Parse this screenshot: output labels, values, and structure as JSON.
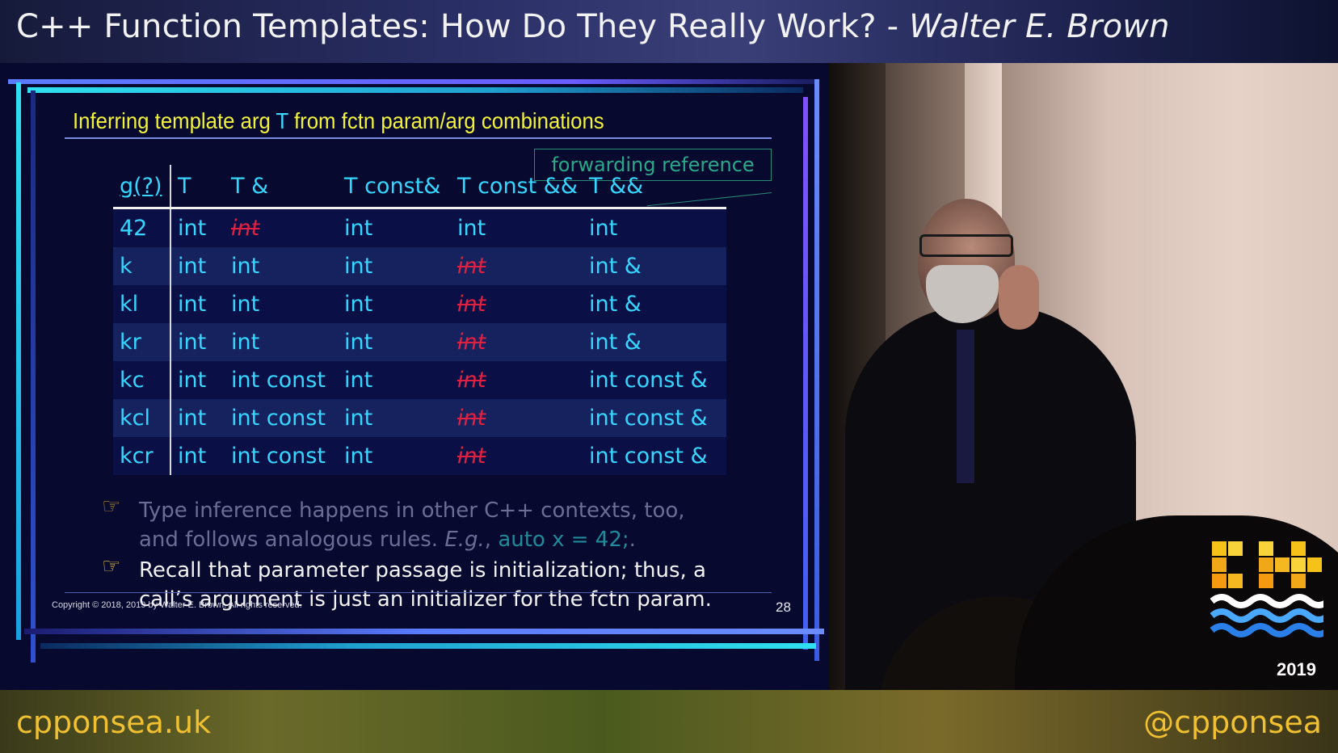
{
  "header": {
    "title": "C++ Function Templates: How Do They Really Work? -",
    "speaker": "Walter E. Brown"
  },
  "slide": {
    "heading_prefix": "Inferring template arg",
    "heading_tvar": "T",
    "heading_suffix": "from fctn param/arg combinations",
    "forwarding_box": "forwarding reference",
    "table": {
      "headers": [
        "g(?)",
        "T",
        "T &",
        "T const&",
        "T const &&",
        "T &&"
      ],
      "rows": [
        {
          "arg": "42",
          "cells": [
            "int",
            "int",
            "int",
            "int",
            "int"
          ],
          "struck": [
            false,
            true,
            false,
            false,
            false
          ]
        },
        {
          "arg": "k",
          "cells": [
            "int",
            "int",
            "int",
            "int",
            "int &"
          ],
          "struck": [
            false,
            false,
            false,
            true,
            false
          ]
        },
        {
          "arg": "kl",
          "cells": [
            "int",
            "int",
            "int",
            "int",
            "int &"
          ],
          "struck": [
            false,
            false,
            false,
            true,
            false
          ]
        },
        {
          "arg": "kr",
          "cells": [
            "int",
            "int",
            "int",
            "int",
            "int &"
          ],
          "struck": [
            false,
            false,
            false,
            true,
            false
          ]
        },
        {
          "arg": "kc",
          "cells": [
            "int",
            "int const",
            "int",
            "int",
            "int const &"
          ],
          "struck": [
            false,
            false,
            false,
            true,
            false
          ]
        },
        {
          "arg": "kcl",
          "cells": [
            "int",
            "int const",
            "int",
            "int",
            "int const &"
          ],
          "struck": [
            false,
            false,
            false,
            true,
            false
          ]
        },
        {
          "arg": "kcr",
          "cells": [
            "int",
            "int const",
            "int",
            "int",
            "int const &"
          ],
          "struck": [
            false,
            false,
            false,
            true,
            false
          ]
        }
      ]
    },
    "bullet1": {
      "line1": "Type inference happens in other C++ contexts, too,",
      "line2_prefix": "and follows analogous rules.",
      "line2_eg": "E.g.",
      "line2_comma": ",",
      "line2_code": "auto  x  =  42;",
      "line2_end": "."
    },
    "bullet2": {
      "line1": "Recall that parameter passage is initialization; thus, a",
      "line2": "call’s argument is just an initializer for the fctn param."
    },
    "copyright": "Copyright © 2018, 2019 by Walter E. Brown.  All rights reserved.",
    "page_number": "28"
  },
  "logo": {
    "year": "2019"
  },
  "footer": {
    "site": "cpponsea.uk",
    "handle": "@cpponsea"
  },
  "colors": {
    "heading": "#f2f23a",
    "table_text": "#36d6ff",
    "struck": "#e02040",
    "footer_text": "#f0c030"
  }
}
